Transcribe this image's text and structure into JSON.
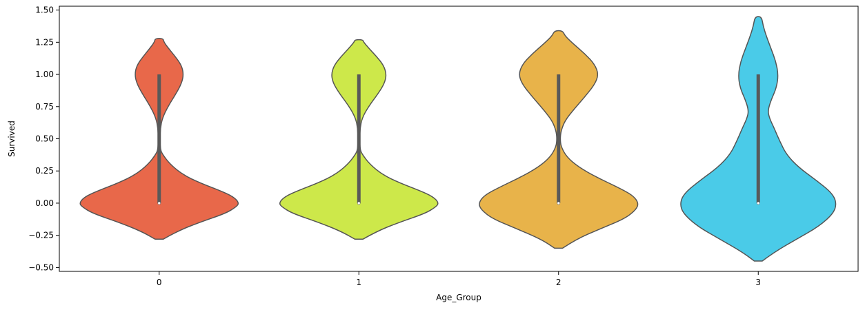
{
  "chart_data": {
    "type": "violin",
    "title": "",
    "xlabel": "Age_Group",
    "ylabel": "Survived",
    "ylim": [
      -0.53,
      1.53
    ],
    "y_ticks": [
      -0.5,
      -0.25,
      0.0,
      0.25,
      0.5,
      0.75,
      1.0,
      1.25,
      1.5
    ],
    "y_tick_labels": [
      "−0.50",
      "−0.25",
      "0.00",
      "0.25",
      "0.50",
      "0.75",
      "1.00",
      "1.25",
      "1.50"
    ],
    "categories": [
      "0",
      "1",
      "2",
      "3"
    ],
    "grid": false,
    "legend": "none",
    "series": [
      {
        "category": "0",
        "color": "#e8684a",
        "y_min": -0.28,
        "y_max": 1.28,
        "median": 0.0,
        "q1": 0.0,
        "q3": 1.0,
        "whisker_low": 0.0,
        "whisker_high": 1.0,
        "density": [
          [
            -0.28,
            0.05
          ],
          [
            -0.22,
            0.22
          ],
          [
            -0.15,
            0.5
          ],
          [
            -0.08,
            0.83
          ],
          [
            -0.03,
            0.96
          ],
          [
            0.0,
            1.0
          ],
          [
            0.05,
            0.93
          ],
          [
            0.1,
            0.75
          ],
          [
            0.16,
            0.5
          ],
          [
            0.22,
            0.3
          ],
          [
            0.3,
            0.14
          ],
          [
            0.38,
            0.04
          ],
          [
            0.42,
            0.015
          ],
          [
            0.5,
            0.01
          ],
          [
            0.58,
            0.015
          ],
          [
            0.66,
            0.04
          ],
          [
            0.75,
            0.11
          ],
          [
            0.85,
            0.21
          ],
          [
            0.93,
            0.28
          ],
          [
            1.0,
            0.305
          ],
          [
            1.07,
            0.28
          ],
          [
            1.14,
            0.2
          ],
          [
            1.2,
            0.12
          ],
          [
            1.25,
            0.06
          ],
          [
            1.28,
            0.05
          ]
        ]
      },
      {
        "category": "1",
        "color": "#cde84a",
        "y_min": -0.28,
        "y_max": 1.27,
        "median": 0.0,
        "q1": 0.0,
        "q3": 1.0,
        "whisker_low": 0.0,
        "whisker_high": 1.0,
        "density": [
          [
            -0.28,
            0.05
          ],
          [
            -0.22,
            0.22
          ],
          [
            -0.15,
            0.5
          ],
          [
            -0.08,
            0.83
          ],
          [
            -0.03,
            0.96
          ],
          [
            0.0,
            1.0
          ],
          [
            0.05,
            0.93
          ],
          [
            0.1,
            0.75
          ],
          [
            0.16,
            0.5
          ],
          [
            0.22,
            0.3
          ],
          [
            0.3,
            0.14
          ],
          [
            0.38,
            0.04
          ],
          [
            0.42,
            0.015
          ],
          [
            0.5,
            0.01
          ],
          [
            0.58,
            0.015
          ],
          [
            0.66,
            0.04
          ],
          [
            0.75,
            0.12
          ],
          [
            0.85,
            0.24
          ],
          [
            0.93,
            0.32
          ],
          [
            1.0,
            0.345
          ],
          [
            1.07,
            0.31
          ],
          [
            1.14,
            0.22
          ],
          [
            1.2,
            0.13
          ],
          [
            1.25,
            0.06
          ],
          [
            1.27,
            0.05
          ]
        ]
      },
      {
        "category": "2",
        "color": "#e8b34a",
        "y_min": -0.35,
        "y_max": 1.34,
        "median": 0.0,
        "q1": 0.0,
        "q3": 1.0,
        "whisker_low": 0.0,
        "whisker_high": 1.0,
        "density": [
          [
            -0.35,
            0.05
          ],
          [
            -0.28,
            0.22
          ],
          [
            -0.2,
            0.52
          ],
          [
            -0.12,
            0.83
          ],
          [
            -0.05,
            0.97
          ],
          [
            0.0,
            1.0
          ],
          [
            0.06,
            0.93
          ],
          [
            0.12,
            0.75
          ],
          [
            0.2,
            0.48
          ],
          [
            0.28,
            0.25
          ],
          [
            0.36,
            0.1
          ],
          [
            0.44,
            0.03
          ],
          [
            0.5,
            0.02
          ],
          [
            0.56,
            0.03
          ],
          [
            0.64,
            0.08
          ],
          [
            0.72,
            0.18
          ],
          [
            0.82,
            0.32
          ],
          [
            0.92,
            0.45
          ],
          [
            1.0,
            0.5
          ],
          [
            1.08,
            0.45
          ],
          [
            1.16,
            0.33
          ],
          [
            1.24,
            0.18
          ],
          [
            1.3,
            0.08
          ],
          [
            1.34,
            0.05
          ]
        ]
      },
      {
        "category": "3",
        "color": "#4acbe8",
        "y_min": -0.45,
        "y_max": 1.45,
        "median": 0.0,
        "q1": 0.0,
        "q3": 1.0,
        "whisker_low": 0.0,
        "whisker_high": 1.0,
        "density": [
          [
            -0.45,
            0.05
          ],
          [
            -0.38,
            0.2
          ],
          [
            -0.28,
            0.48
          ],
          [
            -0.18,
            0.76
          ],
          [
            -0.08,
            0.94
          ],
          [
            0.0,
            0.98
          ],
          [
            0.08,
            0.92
          ],
          [
            0.18,
            0.72
          ],
          [
            0.28,
            0.5
          ],
          [
            0.38,
            0.35
          ],
          [
            0.48,
            0.27
          ],
          [
            0.58,
            0.2
          ],
          [
            0.66,
            0.14
          ],
          [
            0.72,
            0.12
          ],
          [
            0.8,
            0.16
          ],
          [
            0.9,
            0.23
          ],
          [
            1.0,
            0.25
          ],
          [
            1.1,
            0.22
          ],
          [
            1.2,
            0.16
          ],
          [
            1.3,
            0.1
          ],
          [
            1.38,
            0.06
          ],
          [
            1.45,
            0.04
          ]
        ]
      }
    ]
  }
}
